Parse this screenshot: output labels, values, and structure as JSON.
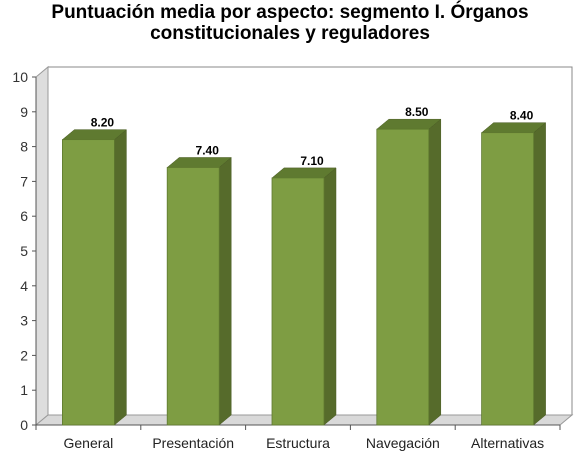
{
  "chart_data": {
    "type": "bar",
    "title_lines": [
      "Puntuación media por aspecto: segmento I. Órganos",
      "constitucionales y reguladores"
    ],
    "categories": [
      "General",
      "Presentación",
      "Estructura",
      "Navegación",
      "Alternativas"
    ],
    "values": [
      8.2,
      7.4,
      7.1,
      8.5,
      8.4
    ],
    "data_labels": [
      "8.20",
      "7.40",
      "7.10",
      "8.50",
      "8.40"
    ],
    "yticks": [
      "0",
      "1",
      "2",
      "3",
      "4",
      "5",
      "6",
      "7",
      "8",
      "9",
      "10"
    ],
    "ylim": [
      0,
      10
    ],
    "xlabel": "",
    "ylabel": "",
    "grid": false,
    "legend": "none",
    "colors": {
      "bar_front": "#7e9d43",
      "bar_side": "#566b2b",
      "bar_top": "#5f7a30",
      "wall": "#ffffff",
      "wall_side": "#dddddd",
      "floor": "#d9d9d9"
    }
  }
}
